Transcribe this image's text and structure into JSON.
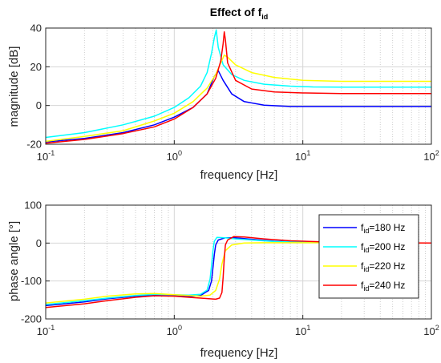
{
  "chart_data": [
    {
      "type": "line",
      "title_main": "Effect of f",
      "title_sub": "id",
      "xlabel": "frequency [Hz]",
      "ylabel": "magnitude [dB]",
      "xscale": "log",
      "xlim": [
        0.1,
        100
      ],
      "ylim": [
        -20,
        40
      ],
      "yticks": [
        "-20",
        "0",
        "20",
        "40"
      ],
      "grid": true,
      "series": [
        {
          "color": "#0000ff",
          "x": [
            0.1,
            0.2,
            0.4,
            0.7,
            1.0,
            1.4,
            1.8,
            2.05,
            2.2,
            2.4,
            2.8,
            3.5,
            5,
            8,
            12,
            20,
            40,
            100
          ],
          "y": [
            -18.8,
            -17,
            -14,
            -10,
            -6,
            -1,
            6,
            15,
            18,
            13,
            6,
            2,
            0.2,
            -0.5,
            -0.5,
            -0.5,
            -0.5,
            -0.5
          ]
        },
        {
          "color": "#00ffff",
          "x": [
            0.1,
            0.2,
            0.4,
            0.7,
            1.0,
            1.3,
            1.6,
            1.8,
            1.95,
            2.05,
            2.12,
            2.2,
            2.4,
            2.8,
            3.5,
            5,
            8,
            12,
            20,
            40,
            100
          ],
          "y": [
            -16.5,
            -14,
            -10,
            -5.5,
            -1,
            4,
            10,
            17,
            27,
            35,
            39,
            30,
            21,
            16,
            13,
            11,
            10,
            9.6,
            9.5,
            9.5,
            9.5
          ]
        },
        {
          "color": "#ffff00",
          "x": [
            0.1,
            0.2,
            0.4,
            0.7,
            1.0,
            1.4,
            1.8,
            2.1,
            2.3,
            2.45,
            2.6,
            3,
            4,
            6,
            10,
            20,
            40,
            100
          ],
          "y": [
            -18.5,
            -16,
            -13,
            -8,
            -4,
            2,
            9,
            16,
            22,
            26,
            25,
            21,
            17,
            14.5,
            13,
            12.5,
            12.5,
            12.5
          ]
        },
        {
          "color": "#ff0000",
          "x": [
            0.1,
            0.2,
            0.4,
            0.7,
            1.0,
            1.4,
            1.8,
            2.1,
            2.3,
            2.4,
            2.45,
            2.5,
            2.6,
            3,
            4,
            6,
            10,
            20,
            40,
            100
          ],
          "y": [
            -19.5,
            -17.5,
            -14.5,
            -11,
            -7,
            -1,
            6,
            14,
            23,
            32,
            38,
            34,
            22,
            13,
            8.5,
            7,
            6.5,
            6.2,
            6.2,
            6.2
          ]
        }
      ]
    },
    {
      "type": "line",
      "xlabel": "frequency [Hz]",
      "ylabel": "phase angle [°]",
      "xscale": "log",
      "xlim": [
        0.1,
        100
      ],
      "ylim": [
        -200,
        100
      ],
      "yticks": [
        "-200",
        "-100",
        "0",
        "100"
      ],
      "grid": true,
      "legend_position": "right",
      "series": [
        {
          "name_main": "f",
          "name_sub": "id",
          "name_rest": "=180 Hz",
          "color": "#0000ff",
          "x": [
            0.1,
            0.2,
            0.3,
            0.5,
            0.7,
            1.0,
            1.3,
            1.6,
            1.85,
            1.95,
            2.0,
            2.05,
            2.1,
            2.2,
            2.5,
            3,
            4,
            6,
            10,
            20,
            50,
            100
          ],
          "y": [
            -165,
            -155,
            -147,
            -140,
            -138,
            -139,
            -141,
            -138,
            -125,
            -100,
            -65,
            -30,
            -5,
            8,
            14,
            14,
            10,
            5,
            2,
            1,
            0,
            0
          ]
        },
        {
          "name_main": "f",
          "name_sub": "id",
          "name_rest": "=200 Hz",
          "color": "#00ffff",
          "x": [
            0.1,
            0.2,
            0.3,
            0.5,
            0.7,
            1.0,
            1.3,
            1.6,
            1.8,
            1.9,
            1.95,
            2.0,
            2.05,
            2.15,
            2.5,
            3,
            4,
            6,
            10,
            20,
            50,
            100
          ],
          "y": [
            -162,
            -152,
            -145,
            -138,
            -135,
            -136,
            -137,
            -135,
            -124,
            -95,
            -60,
            -20,
            5,
            15,
            14,
            11,
            8,
            4,
            2,
            1,
            0,
            0
          ]
        },
        {
          "name_main": "f",
          "name_sub": "id",
          "name_rest": "=220 Hz",
          "color": "#ffff00",
          "x": [
            0.1,
            0.2,
            0.3,
            0.5,
            0.7,
            1.0,
            1.3,
            1.6,
            1.9,
            2.1,
            2.25,
            2.35,
            2.5,
            2.8,
            3.5,
            5,
            10,
            20,
            50,
            100
          ],
          "y": [
            -158,
            -148,
            -140,
            -134,
            -133,
            -136,
            -138,
            -140,
            -137,
            -125,
            -95,
            -55,
            -20,
            -5,
            0,
            1,
            1,
            1,
            0,
            0
          ]
        },
        {
          "name_main": "f",
          "name_sub": "id",
          "name_rest": "=240 Hz",
          "color": "#ff0000",
          "x": [
            0.1,
            0.2,
            0.3,
            0.5,
            0.7,
            1.0,
            1.3,
            1.6,
            1.9,
            2.1,
            2.25,
            2.35,
            2.4,
            2.45,
            2.5,
            2.6,
            2.9,
            3.5,
            5,
            8,
            15,
            30,
            100
          ],
          "y": [
            -170,
            -160,
            -152,
            -143,
            -139,
            -140,
            -143,
            -145,
            -147,
            -148,
            -145,
            -130,
            -90,
            -40,
            -5,
            8,
            17,
            16,
            11,
            6,
            3,
            1,
            0
          ]
        }
      ]
    }
  ]
}
